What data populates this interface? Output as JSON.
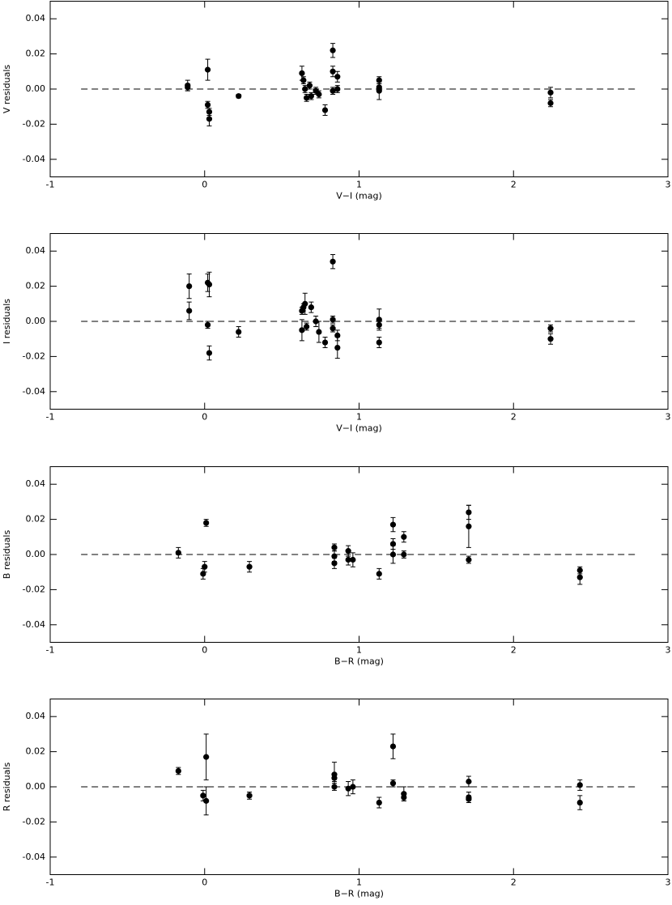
{
  "chart_data": [
    {
      "type": "scatter",
      "xlabel": "V−I (mag)",
      "ylabel": "V residuals",
      "xlim": [
        -1,
        3
      ],
      "ylim": [
        -0.05,
        0.05
      ],
      "xticks": [
        -1,
        0,
        1,
        2,
        3
      ],
      "yticks": [
        -0.04,
        -0.02,
        {
          "value": 0,
          "label": "0.00"
        },
        0.02,
        0.04
      ],
      "reference_line": {
        "y": 0,
        "x": [
          -0.8,
          2.8
        ]
      },
      "color": "#000000",
      "x": [
        -0.11,
        -0.11,
        0.02,
        0.02,
        0.03,
        0.03,
        0.22,
        0.63,
        0.64,
        0.65,
        0.66,
        0.68,
        0.69,
        0.72,
        0.74,
        0.78,
        0.83,
        0.83,
        0.83,
        0.86,
        0.86,
        1.13,
        1.13,
        1.13,
        2.24,
        2.24
      ],
      "values": [
        0.002,
        0.001,
        0.011,
        -0.009,
        -0.013,
        -0.017,
        -0.004,
        0.009,
        0.005,
        0.0,
        -0.005,
        0.002,
        -0.004,
        -0.001,
        -0.003,
        -0.012,
        0.022,
        0.01,
        -0.001,
        0.007,
        0.0,
        0.005,
        0.001,
        -0.001,
        -0.002,
        -0.008
      ],
      "errors": [
        0.003,
        0.002,
        0.006,
        0.002,
        0.002,
        0.004,
        0.001,
        0.004,
        0.002,
        0.002,
        0.002,
        0.002,
        0.002,
        0.002,
        0.002,
        0.003,
        0.004,
        0.003,
        0.002,
        0.003,
        0.002,
        0.002,
        0.002,
        0.005,
        0.003,
        0.002
      ]
    },
    {
      "type": "scatter",
      "xlabel": "V−I (mag)",
      "ylabel": "I residuals",
      "xlim": [
        -1,
        3
      ],
      "ylim": [
        -0.05,
        0.05
      ],
      "xticks": [
        -1,
        0,
        1,
        2,
        3
      ],
      "yticks": [
        -0.04,
        -0.02,
        {
          "value": 0,
          "label": "0.00"
        },
        0.02,
        0.04
      ],
      "reference_line": {
        "y": 0,
        "x": [
          -0.8,
          2.8
        ]
      },
      "color": "#000000",
      "x": [
        -0.1,
        -0.1,
        0.02,
        0.02,
        0.03,
        0.03,
        0.22,
        0.63,
        0.63,
        0.64,
        0.65,
        0.66,
        0.69,
        0.72,
        0.74,
        0.78,
        0.83,
        0.83,
        0.83,
        0.86,
        0.86,
        1.13,
        1.13,
        1.13,
        2.24,
        2.24
      ],
      "values": [
        0.02,
        0.006,
        0.022,
        -0.002,
        0.021,
        -0.018,
        -0.006,
        0.006,
        -0.005,
        0.008,
        0.01,
        -0.003,
        0.008,
        0.0,
        -0.006,
        -0.012,
        0.034,
        0.001,
        -0.004,
        -0.008,
        -0.015,
        0.001,
        -0.002,
        -0.012,
        -0.004,
        -0.01
      ],
      "errors": [
        0.007,
        0.005,
        0.005,
        0.002,
        0.007,
        0.004,
        0.003,
        0.002,
        0.006,
        0.002,
        0.006,
        0.002,
        0.003,
        0.003,
        0.006,
        0.003,
        0.004,
        0.002,
        0.002,
        0.003,
        0.006,
        0.006,
        0.002,
        0.003,
        0.002,
        0.003
      ]
    },
    {
      "type": "scatter",
      "xlabel": "B−R (mag)",
      "ylabel": "B residuals",
      "xlim": [
        -1,
        3
      ],
      "ylim": [
        -0.05,
        0.05
      ],
      "xticks": [
        -1,
        0,
        1,
        2,
        3
      ],
      "yticks": [
        -0.04,
        -0.02,
        {
          "value": 0,
          "label": "0.00"
        },
        0.02,
        0.04
      ],
      "reference_line": {
        "y": 0,
        "x": [
          -0.8,
          2.8
        ]
      },
      "color": "#000000",
      "x": [
        -0.17,
        0.01,
        0.0,
        -0.01,
        0.29,
        0.84,
        0.84,
        0.84,
        0.93,
        0.93,
        0.96,
        1.13,
        1.22,
        1.22,
        1.22,
        1.29,
        1.29,
        1.71,
        1.71,
        1.71,
        2.43,
        2.43
      ],
      "values": [
        0.001,
        0.018,
        -0.007,
        -0.011,
        -0.007,
        0.004,
        -0.001,
        -0.005,
        0.002,
        -0.003,
        -0.003,
        -0.011,
        0.017,
        0.006,
        0.0,
        0.01,
        0.0,
        0.024,
        0.016,
        -0.003,
        -0.009,
        -0.013
      ],
      "errors": [
        0.003,
        0.002,
        0.003,
        0.003,
        0.003,
        0.002,
        0.003,
        0.003,
        0.003,
        0.003,
        0.004,
        0.003,
        0.004,
        0.003,
        0.005,
        0.003,
        0.002,
        0.004,
        0.012,
        0.002,
        0.002,
        0.004
      ]
    },
    {
      "type": "scatter",
      "xlabel": "B−R (mag)",
      "ylabel": "R residuals",
      "xlim": [
        -1,
        3
      ],
      "ylim": [
        -0.05,
        0.05
      ],
      "xticks": [
        -1,
        0,
        1,
        2,
        3
      ],
      "yticks": [
        -0.04,
        -0.02,
        {
          "value": 0,
          "label": "0.00"
        },
        0.02,
        0.04
      ],
      "reference_line": {
        "y": 0,
        "x": [
          -0.8,
          2.8
        ]
      },
      "color": "#000000",
      "x": [
        -0.17,
        0.01,
        -0.01,
        0.01,
        0.29,
        0.84,
        0.84,
        0.84,
        0.93,
        0.96,
        1.13,
        1.22,
        1.22,
        1.29,
        1.29,
        1.71,
        1.71,
        1.71,
        2.43,
        2.43
      ],
      "values": [
        0.009,
        0.017,
        -0.005,
        -0.008,
        -0.005,
        0.007,
        0.005,
        0.0,
        -0.001,
        0.0,
        -0.009,
        0.023,
        0.002,
        -0.004,
        -0.006,
        0.003,
        -0.006,
        -0.007,
        0.001,
        -0.009
      ],
      "errors": [
        0.002,
        0.013,
        0.003,
        0.008,
        0.002,
        0.007,
        0.002,
        0.002,
        0.004,
        0.004,
        0.003,
        0.007,
        0.002,
        0.004,
        0.002,
        0.003,
        0.003,
        0.002,
        0.003,
        0.004
      ]
    }
  ]
}
